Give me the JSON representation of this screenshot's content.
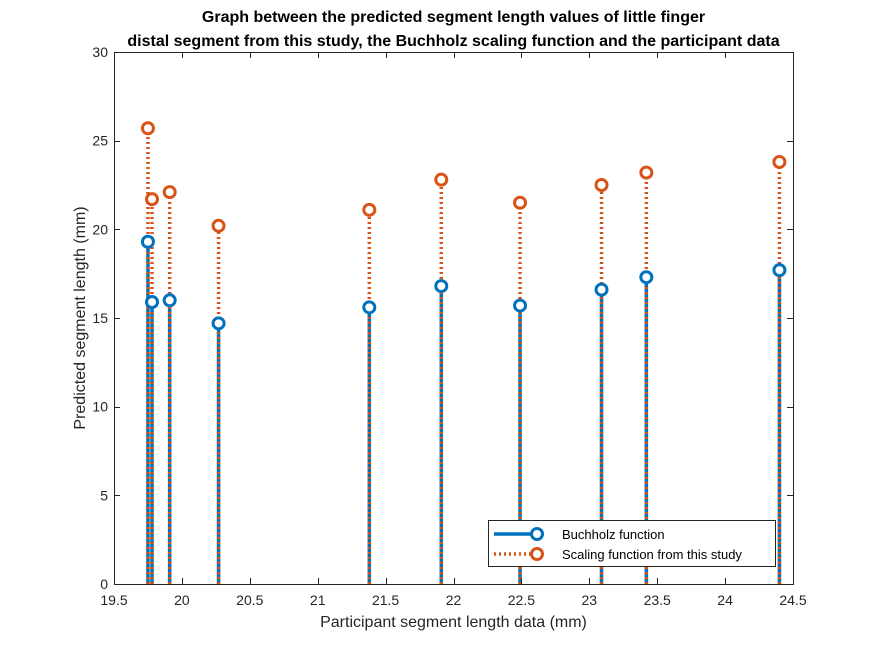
{
  "chart_data": {
    "type": "stem",
    "title": [
      "Graph between the predicted segment length values of little finger",
      "distal segment from this study, the Buchholz scaling function and the participant data"
    ],
    "xlabel": "Participant segment length data (mm)",
    "ylabel": "Predicted segment length (mm)",
    "xlim": [
      19.5,
      24.5
    ],
    "ylim": [
      0,
      30
    ],
    "xticks": [
      19.5,
      20,
      20.5,
      21,
      21.5,
      22,
      22.5,
      23,
      23.5,
      24,
      24.5
    ],
    "yticks": [
      0,
      5,
      10,
      15,
      20,
      25,
      30
    ],
    "grid": false,
    "box": true,
    "legend_position": "bottom-right",
    "series": [
      {
        "name": "Buchholz function",
        "color": "#0072BD",
        "line_style": "solid",
        "marker": "circle",
        "x": [
          19.75,
          19.78,
          19.91,
          20.27,
          21.38,
          21.91,
          22.49,
          23.09,
          23.42,
          24.4
        ],
        "y": [
          19.3,
          15.9,
          16.0,
          14.7,
          15.6,
          16.8,
          15.7,
          16.6,
          17.3,
          17.7
        ]
      },
      {
        "name": "Scaling function from this study",
        "color": "#D95319",
        "line_style": "dotted",
        "marker": "circle",
        "x": [
          19.75,
          19.78,
          19.91,
          20.27,
          21.38,
          21.91,
          22.49,
          23.09,
          23.42,
          24.4
        ],
        "y": [
          25.7,
          21.7,
          22.1,
          20.2,
          21.1,
          22.8,
          21.5,
          22.5,
          23.2,
          23.8
        ]
      }
    ]
  }
}
